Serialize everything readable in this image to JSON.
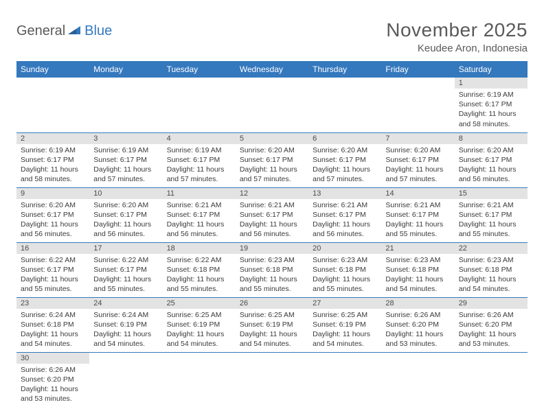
{
  "logo": {
    "general": "General",
    "blue": "Blue"
  },
  "title": "November 2025",
  "location": "Keudee Aron, Indonesia",
  "colors": {
    "header_bg": "#3478bd",
    "header_text": "#ffffff",
    "daynum_bg": "#e3e3e3",
    "border": "#3478bd",
    "text": "#3a3a3a",
    "title_text": "#5a5a5a"
  },
  "day_headers": [
    "Sunday",
    "Monday",
    "Tuesday",
    "Wednesday",
    "Thursday",
    "Friday",
    "Saturday"
  ],
  "weeks": [
    [
      {
        "n": "",
        "lines": []
      },
      {
        "n": "",
        "lines": []
      },
      {
        "n": "",
        "lines": []
      },
      {
        "n": "",
        "lines": []
      },
      {
        "n": "",
        "lines": []
      },
      {
        "n": "",
        "lines": []
      },
      {
        "n": "1",
        "lines": [
          "Sunrise: 6:19 AM",
          "Sunset: 6:17 PM",
          "Daylight: 11 hours",
          "and 58 minutes."
        ]
      }
    ],
    [
      {
        "n": "2",
        "lines": [
          "Sunrise: 6:19 AM",
          "Sunset: 6:17 PM",
          "Daylight: 11 hours",
          "and 58 minutes."
        ]
      },
      {
        "n": "3",
        "lines": [
          "Sunrise: 6:19 AM",
          "Sunset: 6:17 PM",
          "Daylight: 11 hours",
          "and 57 minutes."
        ]
      },
      {
        "n": "4",
        "lines": [
          "Sunrise: 6:19 AM",
          "Sunset: 6:17 PM",
          "Daylight: 11 hours",
          "and 57 minutes."
        ]
      },
      {
        "n": "5",
        "lines": [
          "Sunrise: 6:20 AM",
          "Sunset: 6:17 PM",
          "Daylight: 11 hours",
          "and 57 minutes."
        ]
      },
      {
        "n": "6",
        "lines": [
          "Sunrise: 6:20 AM",
          "Sunset: 6:17 PM",
          "Daylight: 11 hours",
          "and 57 minutes."
        ]
      },
      {
        "n": "7",
        "lines": [
          "Sunrise: 6:20 AM",
          "Sunset: 6:17 PM",
          "Daylight: 11 hours",
          "and 57 minutes."
        ]
      },
      {
        "n": "8",
        "lines": [
          "Sunrise: 6:20 AM",
          "Sunset: 6:17 PM",
          "Daylight: 11 hours",
          "and 56 minutes."
        ]
      }
    ],
    [
      {
        "n": "9",
        "lines": [
          "Sunrise: 6:20 AM",
          "Sunset: 6:17 PM",
          "Daylight: 11 hours",
          "and 56 minutes."
        ]
      },
      {
        "n": "10",
        "lines": [
          "Sunrise: 6:20 AM",
          "Sunset: 6:17 PM",
          "Daylight: 11 hours",
          "and 56 minutes."
        ]
      },
      {
        "n": "11",
        "lines": [
          "Sunrise: 6:21 AM",
          "Sunset: 6:17 PM",
          "Daylight: 11 hours",
          "and 56 minutes."
        ]
      },
      {
        "n": "12",
        "lines": [
          "Sunrise: 6:21 AM",
          "Sunset: 6:17 PM",
          "Daylight: 11 hours",
          "and 56 minutes."
        ]
      },
      {
        "n": "13",
        "lines": [
          "Sunrise: 6:21 AM",
          "Sunset: 6:17 PM",
          "Daylight: 11 hours",
          "and 56 minutes."
        ]
      },
      {
        "n": "14",
        "lines": [
          "Sunrise: 6:21 AM",
          "Sunset: 6:17 PM",
          "Daylight: 11 hours",
          "and 55 minutes."
        ]
      },
      {
        "n": "15",
        "lines": [
          "Sunrise: 6:21 AM",
          "Sunset: 6:17 PM",
          "Daylight: 11 hours",
          "and 55 minutes."
        ]
      }
    ],
    [
      {
        "n": "16",
        "lines": [
          "Sunrise: 6:22 AM",
          "Sunset: 6:17 PM",
          "Daylight: 11 hours",
          "and 55 minutes."
        ]
      },
      {
        "n": "17",
        "lines": [
          "Sunrise: 6:22 AM",
          "Sunset: 6:17 PM",
          "Daylight: 11 hours",
          "and 55 minutes."
        ]
      },
      {
        "n": "18",
        "lines": [
          "Sunrise: 6:22 AM",
          "Sunset: 6:18 PM",
          "Daylight: 11 hours",
          "and 55 minutes."
        ]
      },
      {
        "n": "19",
        "lines": [
          "Sunrise: 6:23 AM",
          "Sunset: 6:18 PM",
          "Daylight: 11 hours",
          "and 55 minutes."
        ]
      },
      {
        "n": "20",
        "lines": [
          "Sunrise: 6:23 AM",
          "Sunset: 6:18 PM",
          "Daylight: 11 hours",
          "and 55 minutes."
        ]
      },
      {
        "n": "21",
        "lines": [
          "Sunrise: 6:23 AM",
          "Sunset: 6:18 PM",
          "Daylight: 11 hours",
          "and 54 minutes."
        ]
      },
      {
        "n": "22",
        "lines": [
          "Sunrise: 6:23 AM",
          "Sunset: 6:18 PM",
          "Daylight: 11 hours",
          "and 54 minutes."
        ]
      }
    ],
    [
      {
        "n": "23",
        "lines": [
          "Sunrise: 6:24 AM",
          "Sunset: 6:18 PM",
          "Daylight: 11 hours",
          "and 54 minutes."
        ]
      },
      {
        "n": "24",
        "lines": [
          "Sunrise: 6:24 AM",
          "Sunset: 6:19 PM",
          "Daylight: 11 hours",
          "and 54 minutes."
        ]
      },
      {
        "n": "25",
        "lines": [
          "Sunrise: 6:25 AM",
          "Sunset: 6:19 PM",
          "Daylight: 11 hours",
          "and 54 minutes."
        ]
      },
      {
        "n": "26",
        "lines": [
          "Sunrise: 6:25 AM",
          "Sunset: 6:19 PM",
          "Daylight: 11 hours",
          "and 54 minutes."
        ]
      },
      {
        "n": "27",
        "lines": [
          "Sunrise: 6:25 AM",
          "Sunset: 6:19 PM",
          "Daylight: 11 hours",
          "and 54 minutes."
        ]
      },
      {
        "n": "28",
        "lines": [
          "Sunrise: 6:26 AM",
          "Sunset: 6:20 PM",
          "Daylight: 11 hours",
          "and 53 minutes."
        ]
      },
      {
        "n": "29",
        "lines": [
          "Sunrise: 6:26 AM",
          "Sunset: 6:20 PM",
          "Daylight: 11 hours",
          "and 53 minutes."
        ]
      }
    ],
    [
      {
        "n": "30",
        "lines": [
          "Sunrise: 6:26 AM",
          "Sunset: 6:20 PM",
          "Daylight: 11 hours",
          "and 53 minutes."
        ]
      },
      {
        "n": "",
        "lines": []
      },
      {
        "n": "",
        "lines": []
      },
      {
        "n": "",
        "lines": []
      },
      {
        "n": "",
        "lines": []
      },
      {
        "n": "",
        "lines": []
      },
      {
        "n": "",
        "lines": []
      }
    ]
  ]
}
